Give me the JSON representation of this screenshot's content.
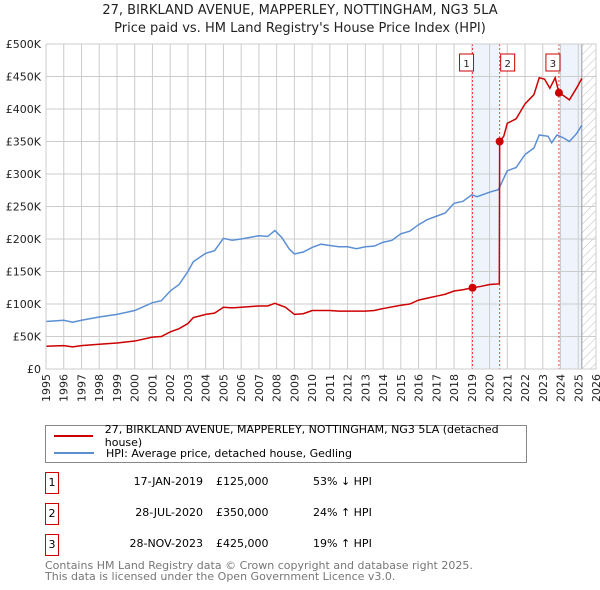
{
  "header": {
    "title": "27, BIRKLAND AVENUE, MAPPERLEY, NOTTINGHAM, NG3 5LA",
    "subtitle": "Price paid vs. HM Land Registry's House Price Index (HPI)"
  },
  "chart_data": {
    "type": "line",
    "title": "27, BIRKLAND AVENUE, MAPPERLEY, NOTTINGHAM, NG3 5LA",
    "subtitle": "Price paid vs. HM Land Registry's House Price Index (HPI)",
    "xlim": [
      1995,
      2026
    ],
    "ylim": [
      0,
      500000
    ],
    "x_ticks": [
      "1995",
      "1996",
      "1997",
      "1998",
      "1999",
      "2000",
      "2001",
      "2002",
      "2003",
      "2004",
      "2005",
      "2006",
      "2007",
      "2008",
      "2009",
      "2010",
      "2011",
      "2012",
      "2013",
      "2014",
      "2015",
      "2016",
      "2017",
      "2018",
      "2019",
      "2020",
      "2021",
      "2022",
      "2023",
      "2024",
      "2025",
      "2026"
    ],
    "y_ticks": [
      {
        "v": 0,
        "label": "£0"
      },
      {
        "v": 50000,
        "label": "£50K"
      },
      {
        "v": 100000,
        "label": "£100K"
      },
      {
        "v": 150000,
        "label": "£150K"
      },
      {
        "v": 200000,
        "label": "£200K"
      },
      {
        "v": 250000,
        "label": "£250K"
      },
      {
        "v": 300000,
        "label": "£300K"
      },
      {
        "v": 350000,
        "label": "£350K"
      },
      {
        "v": 400000,
        "label": "£400K"
      },
      {
        "v": 450000,
        "label": "£450K"
      },
      {
        "v": 500000,
        "label": "£500K"
      }
    ],
    "grid": true,
    "data_end": 2025.2,
    "series": [
      {
        "name": "27, BIRKLAND AVENUE, MAPPERLEY, NOTTINGHAM, NG3 5LA (detached house)",
        "color": "#cc0000",
        "points": [
          [
            1995,
            35000
          ],
          [
            1996,
            36000
          ],
          [
            1996.5,
            34000
          ],
          [
            1997,
            36000
          ],
          [
            1998,
            38000
          ],
          [
            1999,
            40000
          ],
          [
            2000,
            43000
          ],
          [
            2001,
            49000
          ],
          [
            2001.5,
            50000
          ],
          [
            2002,
            57000
          ],
          [
            2002.5,
            62000
          ],
          [
            2003,
            70000
          ],
          [
            2003.3,
            79000
          ],
          [
            2004,
            84000
          ],
          [
            2004.5,
            86000
          ],
          [
            2005,
            95000
          ],
          [
            2005.5,
            94000
          ],
          [
            2006,
            95000
          ],
          [
            2007,
            97000
          ],
          [
            2007.5,
            97000
          ],
          [
            2007.9,
            101000
          ],
          [
            2008.5,
            95000
          ],
          [
            2009,
            84000
          ],
          [
            2009.5,
            85000
          ],
          [
            2010,
            90000
          ],
          [
            2011,
            90000
          ],
          [
            2011.5,
            89000
          ],
          [
            2012,
            89000
          ],
          [
            2013,
            89000
          ],
          [
            2013.5,
            90000
          ],
          [
            2014,
            93000
          ],
          [
            2015,
            98000
          ],
          [
            2015.5,
            100000
          ],
          [
            2016,
            106000
          ],
          [
            2016.5,
            109000
          ],
          [
            2017,
            112000
          ],
          [
            2017.5,
            115000
          ],
          [
            2018,
            120000
          ],
          [
            2018.5,
            122000
          ],
          [
            2019.04,
            125000
          ],
          [
            2019.5,
            127000
          ],
          [
            2020,
            130000
          ],
          [
            2020.55,
            131000
          ],
          [
            2020.57,
            350000
          ],
          [
            2020.8,
            358000
          ],
          [
            2021,
            378000
          ],
          [
            2021.5,
            385000
          ],
          [
            2022,
            408000
          ],
          [
            2022.5,
            422000
          ],
          [
            2022.8,
            448000
          ],
          [
            2023.1,
            446000
          ],
          [
            2023.4,
            432000
          ],
          [
            2023.7,
            448000
          ],
          [
            2023.91,
            425000
          ],
          [
            2024.2,
            420000
          ],
          [
            2024.5,
            414000
          ],
          [
            2024.9,
            432000
          ],
          [
            2025.2,
            447000
          ]
        ]
      },
      {
        "name": "HPI: Average price, detached house, Gedling",
        "color": "#5b8fd4",
        "points": [
          [
            1995,
            73000
          ],
          [
            1996,
            75000
          ],
          [
            1996.5,
            72000
          ],
          [
            1997,
            75000
          ],
          [
            1998,
            80000
          ],
          [
            1999,
            84000
          ],
          [
            2000,
            90000
          ],
          [
            2001,
            102000
          ],
          [
            2001.5,
            105000
          ],
          [
            2002,
            120000
          ],
          [
            2002.5,
            130000
          ],
          [
            2003,
            150000
          ],
          [
            2003.3,
            165000
          ],
          [
            2004,
            178000
          ],
          [
            2004.5,
            182000
          ],
          [
            2005,
            201000
          ],
          [
            2005.5,
            198000
          ],
          [
            2006,
            200000
          ],
          [
            2007,
            205000
          ],
          [
            2007.5,
            204000
          ],
          [
            2007.9,
            213000
          ],
          [
            2008.3,
            202000
          ],
          [
            2008.7,
            185000
          ],
          [
            2009,
            177000
          ],
          [
            2009.5,
            180000
          ],
          [
            2010,
            187000
          ],
          [
            2010.5,
            192000
          ],
          [
            2011,
            190000
          ],
          [
            2011.5,
            188000
          ],
          [
            2012,
            188000
          ],
          [
            2012.5,
            185000
          ],
          [
            2013,
            188000
          ],
          [
            2013.5,
            189000
          ],
          [
            2014,
            195000
          ],
          [
            2014.5,
            198000
          ],
          [
            2015,
            208000
          ],
          [
            2015.5,
            212000
          ],
          [
            2016,
            222000
          ],
          [
            2016.5,
            230000
          ],
          [
            2017,
            235000
          ],
          [
            2017.5,
            240000
          ],
          [
            2018,
            255000
          ],
          [
            2018.5,
            258000
          ],
          [
            2019,
            268000
          ],
          [
            2019.3,
            265000
          ],
          [
            2020,
            272000
          ],
          [
            2020.5,
            276000
          ],
          [
            2021,
            305000
          ],
          [
            2021.5,
            310000
          ],
          [
            2022,
            330000
          ],
          [
            2022.5,
            340000
          ],
          [
            2022.8,
            360000
          ],
          [
            2023.3,
            358000
          ],
          [
            2023.5,
            348000
          ],
          [
            2023.8,
            360000
          ],
          [
            2024.2,
            355000
          ],
          [
            2024.5,
            350000
          ],
          [
            2024.9,
            362000
          ],
          [
            2025.2,
            375000
          ]
        ]
      }
    ],
    "sales": [
      {
        "id": "1",
        "x": 2019.04,
        "price": 125000,
        "date": "17-JAN-2019",
        "price_label": "£125,000",
        "hpi": "53% ↓ HPI"
      },
      {
        "id": "2",
        "x": 2020.57,
        "price": 350000,
        "date": "28-JUL-2020",
        "price_label": "£350,000",
        "hpi": "24% ↑ HPI"
      },
      {
        "id": "3",
        "x": 2023.91,
        "price": 425000,
        "date": "28-NOV-2023",
        "price_label": "£425,000",
        "hpi": "19% ↑ HPI"
      }
    ],
    "legend": "below"
  },
  "footer": {
    "line1": "Contains HM Land Registry data © Crown copyright and database right 2025.",
    "line2": "This data is licensed under the Open Government Licence v3.0."
  }
}
